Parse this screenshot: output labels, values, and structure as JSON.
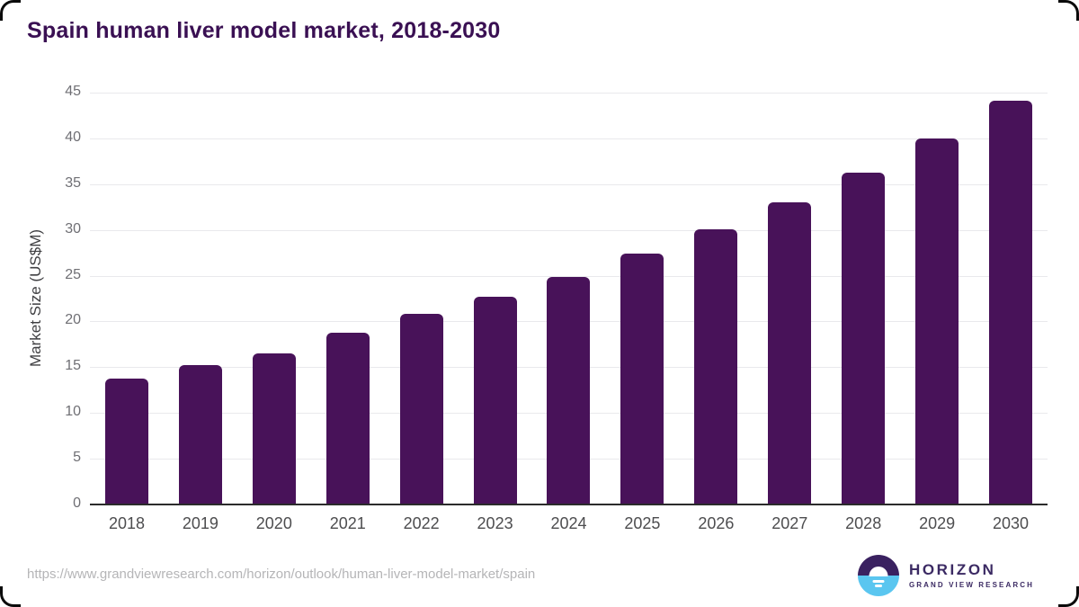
{
  "title": "Spain human liver model market, 2018-2030",
  "chart_data": {
    "type": "bar",
    "categories": [
      "2018",
      "2019",
      "2020",
      "2021",
      "2022",
      "2023",
      "2024",
      "2025",
      "2026",
      "2027",
      "2028",
      "2029",
      "2030"
    ],
    "values": [
      13.7,
      15.1,
      16.4,
      18.7,
      20.7,
      22.6,
      24.8,
      27.3,
      30.0,
      32.9,
      36.2,
      39.9,
      44.0
    ],
    "title": "Spain human liver model market, 2018-2030",
    "xlabel": "",
    "ylabel": "Market Size (US$M)",
    "ylim": [
      0,
      45
    ],
    "yticks": [
      0,
      5,
      10,
      15,
      20,
      25,
      30,
      35,
      40,
      45
    ],
    "grid": "horizontal",
    "legend": "none",
    "bar_color": "#481259"
  },
  "colors": {
    "bar": "#481259",
    "title_text": "#3a1053",
    "gridline": "#e9e9ec",
    "axis_baseline": "#2b2b2b",
    "y_tick_text": "#6f6f74",
    "x_tick_text": "#4d4d4f",
    "url_text": "#b5b5b7",
    "logo_purple": "#3a2160",
    "logo_blue": "#5ac6f0"
  },
  "footer": {
    "source_url": "https://www.grandviewresearch.com/horizon/outlook/human-liver-model-market/spain",
    "logo": {
      "name": "HORIZON",
      "subtitle": "GRAND VIEW RESEARCH"
    }
  }
}
